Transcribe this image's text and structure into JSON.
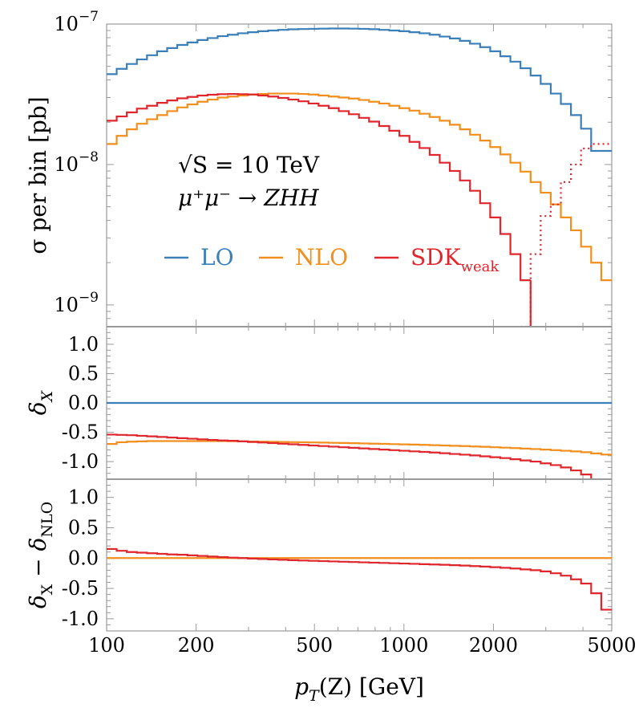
{
  "chart_data": {
    "type": "line",
    "title": "",
    "colors": {
      "LO": "#3b7fb8",
      "NLO": "#f28e1c",
      "SDK_weak": "#e0262c"
    },
    "annotations": {
      "energy": "√S = 10 TeV",
      "process": "μ⁺μ⁻ → ZHH"
    },
    "legend": {
      "placement": "middle",
      "entries": [
        {
          "key": "LO",
          "label": "LO",
          "sub": ""
        },
        {
          "key": "NLO",
          "label": "NLO",
          "sub": ""
        },
        {
          "key": "SDK_weak",
          "label": "SDK",
          "sub": "weak"
        }
      ]
    },
    "x": {
      "label_italic": "p",
      "label_sub": "T",
      "label_rest": "(Z)  [GeV]",
      "scale": "log",
      "lim": [
        100,
        5000
      ],
      "ticks": [
        100,
        200,
        500,
        1000,
        2000,
        5000
      ],
      "tick_labels": [
        "100",
        "200",
        "500",
        "1000",
        "2000",
        "5000"
      ]
    },
    "bin_edges": [
      100,
      108.1,
      116.9,
      126.4,
      136.7,
      147.8,
      159.8,
      172.8,
      186.9,
      202.1,
      218.5,
      236.3,
      255.5,
      276.3,
      298.7,
      323.0,
      349.3,
      377.7,
      408.4,
      441.6,
      477.5,
      516.3,
      558.3,
      603.7,
      652.8,
      705.9,
      763.3,
      825.4,
      892.5,
      965.1,
      1043.6,
      1128.4,
      1220.2,
      1319.4,
      1426.7,
      1542.7,
      1668.2,
      1803.8,
      1950.5,
      2109.1,
      2280.6,
      2466.1,
      2666.7,
      2883.5,
      3118.0,
      3371.6,
      3645.8,
      3942.3,
      4262.9,
      4609.6,
      5000
    ],
    "panels": [
      {
        "ylabel": "σ per bin [pb]",
        "yscale": "log",
        "ylim": [
          7e-10,
          1e-07
        ],
        "yticks": [
          1e-09,
          1e-08,
          1e-07
        ],
        "ytick_labels": [
          {
            "base": "10",
            "exp": "−9"
          },
          {
            "base": "10",
            "exp": "−8"
          },
          {
            "base": "10",
            "exp": "−7"
          }
        ],
        "series": [
          {
            "name": "LO",
            "key": "LO",
            "values": [
              4.4e-08,
              4.8e-08,
              5.2e-08,
              5.6e-08,
              6e-08,
              6.4e-08,
              6.75e-08,
              7.1e-08,
              7.4e-08,
              7.7e-08,
              7.95e-08,
              8.2e-08,
              8.4e-08,
              8.6e-08,
              8.75e-08,
              8.9e-08,
              9e-08,
              9.1e-08,
              9.18e-08,
              9.22e-08,
              9.25e-08,
              9.28e-08,
              9.3e-08,
              9.3e-08,
              9.28e-08,
              9.25e-08,
              9.2e-08,
              9.1e-08,
              9e-08,
              8.9e-08,
              8.75e-08,
              8.6e-08,
              8.4e-08,
              8.15e-08,
              7.9e-08,
              7.6e-08,
              7.25e-08,
              6.85e-08,
              6.4e-08,
              5.9e-08,
              5.4e-08,
              4.85e-08,
              4.3e-08,
              3.75e-08,
              3.2e-08,
              2.7e-08,
              2.25e-08,
              1.8e-08,
              1.25e-08,
              1.25e-08
            ]
          },
          {
            "name": "NLO",
            "key": "NLO",
            "values": [
              1.4e-08,
              1.6e-08,
              1.78e-08,
              1.95e-08,
              2.1e-08,
              2.25e-08,
              2.4e-08,
              2.55e-08,
              2.68e-08,
              2.8e-08,
              2.9e-08,
              3e-08,
              3.05e-08,
              3.1e-08,
              3.15e-08,
              3.18e-08,
              3.2e-08,
              3.2e-08,
              3.2e-08,
              3.18e-08,
              3.15e-08,
              3.1e-08,
              3.05e-08,
              3e-08,
              2.95e-08,
              2.88e-08,
              2.8e-08,
              2.72e-08,
              2.62e-08,
              2.52e-08,
              2.42e-08,
              2.3e-08,
              2.18e-08,
              2.05e-08,
              1.92e-08,
              1.78e-08,
              1.63e-08,
              1.48e-08,
              1.33e-08,
              1.18e-08,
              1.03e-08,
              8.9e-09,
              7.5e-09,
              6.3e-09,
              5.2e-09,
              4.2e-09,
              3.4e-09,
              2.6e-09,
              2e-09,
              1.5e-09
            ]
          },
          {
            "name": "SDK_weak",
            "key": "SDK_weak",
            "values": [
              2.05e-08,
              2.2e-08,
              2.35e-08,
              2.5e-08,
              2.62e-08,
              2.75e-08,
              2.86e-08,
              2.96e-08,
              3.03e-08,
              3.1e-08,
              3.14e-08,
              3.17e-08,
              3.18e-08,
              3.17e-08,
              3.15e-08,
              3.1e-08,
              3.05e-08,
              2.98e-08,
              2.9e-08,
              2.82e-08,
              2.72e-08,
              2.62e-08,
              2.52e-08,
              2.4e-08,
              2.28e-08,
              2.15e-08,
              2.02e-08,
              1.88e-08,
              1.74e-08,
              1.6e-08,
              1.45e-08,
              1.31e-08,
              1.17e-08,
              1.03e-08,
              9e-09,
              7.7e-09,
              6.5e-09,
              5.3e-09,
              4.2e-09,
              3.2e-09,
              2.3e-09,
              1.5e-09,
              null,
              null,
              null,
              null,
              null,
              null,
              null,
              null
            ]
          },
          {
            "name": "SDK_weak (negative, |value|)",
            "key": "SDK_weak",
            "dashed": true,
            "values": [
              null,
              null,
              null,
              null,
              null,
              null,
              null,
              null,
              null,
              null,
              null,
              null,
              null,
              null,
              null,
              null,
              null,
              null,
              null,
              null,
              null,
              null,
              null,
              null,
              null,
              null,
              null,
              null,
              null,
              null,
              null,
              null,
              null,
              null,
              null,
              null,
              null,
              null,
              null,
              null,
              null,
              7e-10,
              2.3e-09,
              4.3e-09,
              5.2e-09,
              7.5e-09,
              1e-08,
              1.3e-08,
              1.4e-08,
              1.4e-08
            ]
          }
        ]
      },
      {
        "ylabel_main": "δ",
        "ylabel_sub": "X",
        "yscale": "linear",
        "ylim": [
          -1.3,
          1.3
        ],
        "yticks": [
          1.0,
          0.5,
          0.0,
          -0.5,
          -1.0
        ],
        "ytick_labels": [
          "1.0",
          "0.5",
          "0.0",
          "-0.5",
          "-1.0"
        ],
        "series": [
          {
            "name": "LO",
            "key": "LO",
            "values": [
              0,
              0,
              0,
              0,
              0,
              0,
              0,
              0,
              0,
              0,
              0,
              0,
              0,
              0,
              0,
              0,
              0,
              0,
              0,
              0,
              0,
              0,
              0,
              0,
              0,
              0,
              0,
              0,
              0,
              0,
              0,
              0,
              0,
              0,
              0,
              0,
              0,
              0,
              0,
              0,
              0,
              0,
              0,
              0,
              0,
              0,
              0,
              0,
              0,
              0
            ]
          },
          {
            "name": "NLO",
            "key": "NLO",
            "values": [
              -0.7,
              -0.67,
              -0.66,
              -0.655,
              -0.65,
              -0.65,
              -0.65,
              -0.65,
              -0.65,
              -0.65,
              -0.65,
              -0.65,
              -0.652,
              -0.655,
              -0.658,
              -0.66,
              -0.662,
              -0.665,
              -0.668,
              -0.67,
              -0.673,
              -0.676,
              -0.68,
              -0.683,
              -0.686,
              -0.69,
              -0.694,
              -0.698,
              -0.702,
              -0.706,
              -0.71,
              -0.715,
              -0.72,
              -0.725,
              -0.73,
              -0.736,
              -0.742,
              -0.748,
              -0.755,
              -0.762,
              -0.77,
              -0.778,
              -0.786,
              -0.795,
              -0.805,
              -0.815,
              -0.826,
              -0.84,
              -0.86,
              -0.88
            ]
          },
          {
            "name": "SDK_weak",
            "key": "SDK_weak",
            "values": [
              -0.54,
              -0.545,
              -0.55,
              -0.56,
              -0.57,
              -0.58,
              -0.59,
              -0.6,
              -0.61,
              -0.62,
              -0.63,
              -0.64,
              -0.645,
              -0.655,
              -0.665,
              -0.675,
              -0.685,
              -0.695,
              -0.705,
              -0.715,
              -0.725,
              -0.735,
              -0.745,
              -0.755,
              -0.765,
              -0.775,
              -0.785,
              -0.795,
              -0.805,
              -0.815,
              -0.825,
              -0.835,
              -0.845,
              -0.857,
              -0.87,
              -0.882,
              -0.895,
              -0.91,
              -0.925,
              -0.94,
              -0.96,
              -0.98,
              -1.0,
              -1.03,
              -1.06,
              -1.1,
              -1.15,
              -1.22,
              -1.35,
              -1.5
            ]
          }
        ]
      },
      {
        "ylabel_main": "δ",
        "ylabel_sub": "X",
        "ylabel_rest_main": "δ",
        "ylabel_rest_sub": "NLO",
        "yscale": "linear",
        "ylim": [
          -1.2,
          1.3
        ],
        "yticks": [
          1.0,
          0.5,
          0.0,
          -0.5,
          -1.0
        ],
        "ytick_labels": [
          "1.0",
          "0.5",
          "0.0",
          "-0.5",
          "-1.0"
        ],
        "series": [
          {
            "name": "NLO",
            "key": "NLO",
            "values": [
              0,
              0,
              0,
              0,
              0,
              0,
              0,
              0,
              0,
              0,
              0,
              0,
              0,
              0,
              0,
              0,
              0,
              0,
              0,
              0,
              0,
              0,
              0,
              0,
              0,
              0,
              0,
              0,
              0,
              0,
              0,
              0,
              0,
              0,
              0,
              0,
              0,
              0,
              0,
              0,
              0,
              0,
              0,
              0,
              0,
              0,
              0,
              0,
              0,
              0
            ]
          },
          {
            "name": "SDK_weak",
            "key": "SDK_weak",
            "values": [
              0.15,
              0.12,
              0.1,
              0.09,
              0.08,
              0.07,
              0.06,
              0.055,
              0.045,
              0.035,
              0.025,
              0.015,
              0.008,
              0.0,
              -0.008,
              -0.015,
              -0.022,
              -0.028,
              -0.034,
              -0.04,
              -0.045,
              -0.05,
              -0.055,
              -0.06,
              -0.065,
              -0.07,
              -0.075,
              -0.08,
              -0.085,
              -0.09,
              -0.095,
              -0.1,
              -0.105,
              -0.11,
              -0.117,
              -0.124,
              -0.132,
              -0.14,
              -0.15,
              -0.16,
              -0.172,
              -0.186,
              -0.2,
              -0.22,
              -0.25,
              -0.29,
              -0.35,
              -0.42,
              -0.58,
              -0.85
            ]
          }
        ]
      }
    ]
  }
}
